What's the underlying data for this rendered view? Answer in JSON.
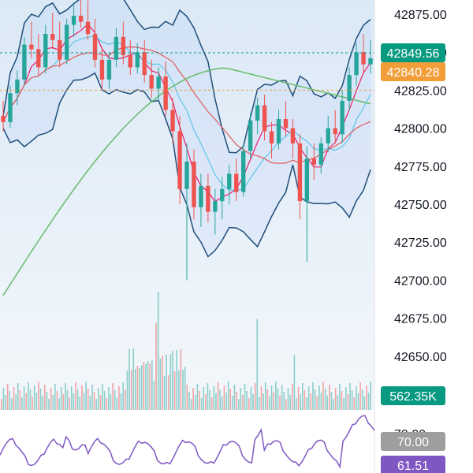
{
  "chart_data": {
    "type": "candlestick",
    "title": "",
    "y_axis": {
      "position": "right",
      "ticks": [
        "42875.00",
        "42850.00",
        "42825.00",
        "42800.00",
        "42775.00",
        "42750.00",
        "42725.00",
        "42700.00",
        "42675.00",
        "42650.00"
      ],
      "range": [
        42640,
        42885
      ]
    },
    "price_levels": [
      {
        "label": "42849.56",
        "value": 42849.56,
        "line_color": "#089981",
        "badge_color": "#089981"
      },
      {
        "label": "42840.28",
        "value": 42840.28,
        "badge_color": "#f29d38"
      },
      {
        "label": "42825.00",
        "value": 42825.0,
        "line_color": "#f29d38"
      }
    ],
    "volume": {
      "last_value_label": "562.35K",
      "badge_color": "#089981"
    },
    "oscillator": {
      "ticks": [
        "70.00"
      ],
      "last_value_label": "61.51",
      "line_color": "#7e57c2",
      "badge_color": "#7e57c2",
      "level_badge_color": "#9e9e9e"
    },
    "candles": [
      [
        42808,
        42818,
        42798,
        42804
      ],
      [
        42804,
        42828,
        42800,
        42823
      ],
      [
        42823,
        42838,
        42815,
        42832
      ],
      [
        42832,
        42860,
        42828,
        42855
      ],
      [
        42855,
        42870,
        42846,
        42852
      ],
      [
        42852,
        42862,
        42835,
        42840
      ],
      [
        42840,
        42868,
        42836,
        42862
      ],
      [
        42862,
        42876,
        42852,
        42858
      ],
      [
        42858,
        42870,
        42840,
        42845
      ],
      [
        42845,
        42872,
        42842,
        42868
      ],
      [
        42868,
        42882,
        42860,
        42874
      ],
      [
        42874,
        42888,
        42866,
        42870
      ],
      [
        42870,
        42884,
        42858,
        42862
      ],
      [
        42862,
        42872,
        42840,
        42845
      ],
      [
        42845,
        42852,
        42825,
        42832
      ],
      [
        42832,
        42850,
        42826,
        42845
      ],
      [
        42845,
        42866,
        42840,
        42860
      ],
      [
        42860,
        42870,
        42842,
        42848
      ],
      [
        42848,
        42858,
        42835,
        42840
      ],
      [
        42840,
        42856,
        42836,
        42850
      ],
      [
        42850,
        42858,
        42830,
        42835
      ],
      [
        42835,
        42845,
        42820,
        42826
      ],
      [
        42826,
        42840,
        42818,
        42834
      ],
      [
        42834,
        42844,
        42808,
        42812
      ],
      [
        42812,
        42820,
        42790,
        42798
      ],
      [
        42798,
        42808,
        42750,
        42760
      ],
      [
        42760,
        42790,
        42700,
        42778
      ],
      [
        42778,
        42786,
        42740,
        42748
      ],
      [
        42748,
        42770,
        42735,
        42762
      ],
      [
        42762,
        42770,
        42738,
        42745
      ],
      [
        42745,
        42760,
        42730,
        42752
      ],
      [
        42752,
        42768,
        42740,
        42760
      ],
      [
        42760,
        42776,
        42750,
        42770
      ],
      [
        42770,
        42780,
        42752,
        42758
      ],
      [
        42758,
        42790,
        42755,
        42785
      ],
      [
        42785,
        42810,
        42780,
        42805
      ],
      [
        42805,
        42820,
        42796,
        42815
      ],
      [
        42815,
        42822,
        42792,
        42798
      ],
      [
        42798,
        42804,
        42780,
        42790
      ],
      [
        42790,
        42812,
        42786,
        42806
      ],
      [
        42806,
        42818,
        42795,
        42800
      ],
      [
        42800,
        42806,
        42780,
        42790
      ],
      [
        42790,
        42796,
        42740,
        42752
      ],
      [
        42752,
        42788,
        42712,
        42780
      ],
      [
        42780,
        42790,
        42766,
        42776
      ],
      [
        42776,
        42794,
        42770,
        42790
      ],
      [
        42790,
        42808,
        42784,
        42800
      ],
      [
        42800,
        42812,
        42790,
        42796
      ],
      [
        42796,
        42825,
        42790,
        42818
      ],
      [
        42818,
        42840,
        42812,
        42835
      ],
      [
        42835,
        42856,
        42828,
        42850
      ],
      [
        42850,
        42862,
        42836,
        42842
      ],
      [
        42842,
        42858,
        42836,
        42846
      ]
    ]
  }
}
